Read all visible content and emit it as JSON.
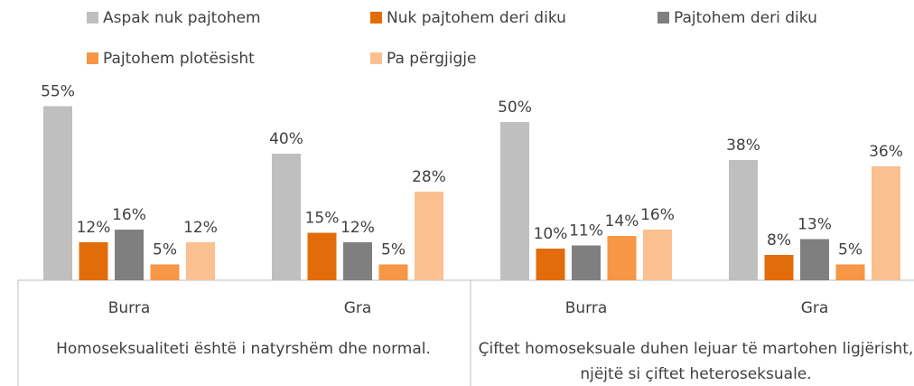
{
  "chart_data": {
    "type": "bar",
    "groups": [
      {
        "name": "Homoseksualiteti është i natyrshëm dhe normal."
      },
      {
        "name": "Çiftet homoseksuale duhen lejuar të martohen ligjërisht, njëjtë si çiftet heteroseksuale."
      }
    ],
    "categories": [
      "Burra",
      "Gra",
      "Burra",
      "Gra"
    ],
    "series": [
      {
        "name": "Aspak nuk pajtohem",
        "color": "#bfbfbf",
        "values": [
          55,
          40,
          50,
          38
        ],
        "value_labels": [
          "55%",
          "40%",
          "50%",
          "38%"
        ]
      },
      {
        "name": "Nuk pajtohem deri diku",
        "color": "#e36c0a",
        "values": [
          12,
          15,
          10,
          8
        ],
        "value_labels": [
          "12%",
          "15%",
          "10%",
          "8%"
        ]
      },
      {
        "name": "Pajtohem deri diku",
        "color": "#7f7f7f",
        "values": [
          16,
          12,
          11,
          13
        ],
        "value_labels": [
          "16%",
          "12%",
          "11%",
          "13%"
        ]
      },
      {
        "name": "Pajtohem plotësisht",
        "color": "#f79646",
        "values": [
          5,
          5,
          14,
          5
        ],
        "value_labels": [
          "5%",
          "5%",
          "14%",
          "5%"
        ]
      },
      {
        "name": "Pa përgjigje",
        "color": "#fac090",
        "values": [
          12,
          28,
          16,
          36
        ],
        "value_labels": [
          "12%",
          "28%",
          "16%",
          "36%"
        ]
      }
    ]
  }
}
